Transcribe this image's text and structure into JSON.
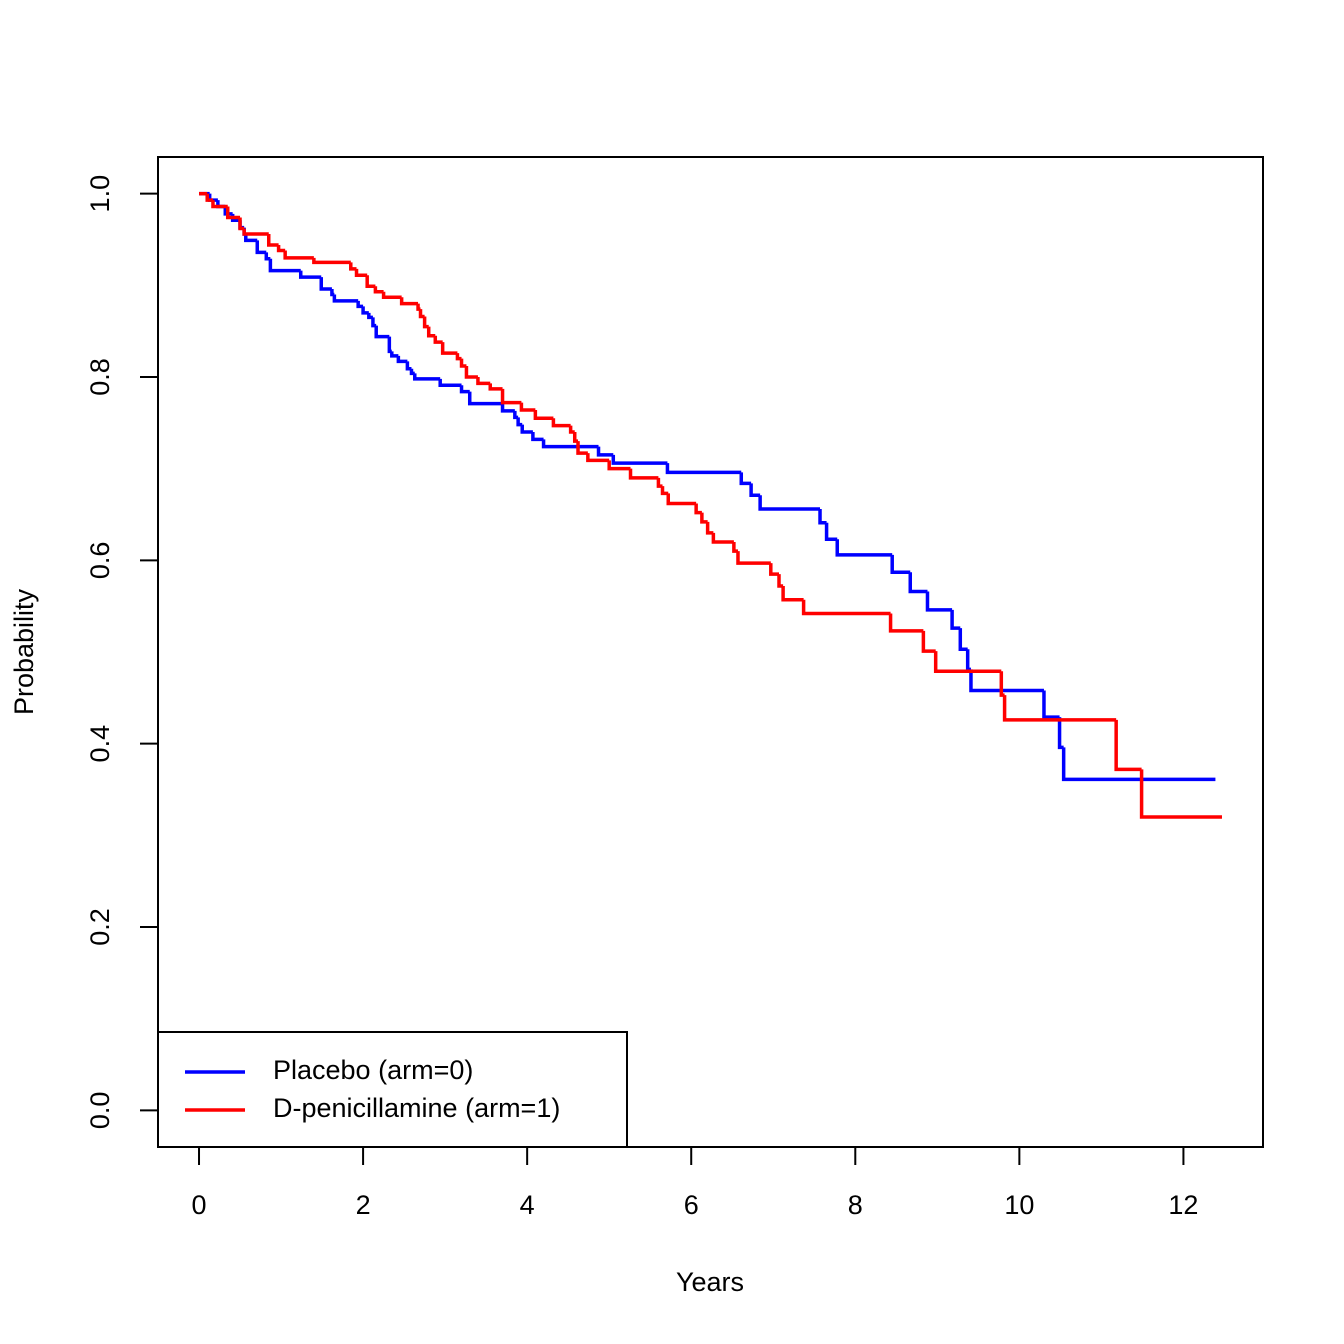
{
  "chart_data": {
    "type": "step",
    "xlabel": "Years",
    "ylabel": "Probability",
    "xlim": [
      -0.5,
      12.97
    ],
    "ylim": [
      -0.04,
      1.04
    ],
    "xticks": [
      0,
      2,
      4,
      6,
      8,
      10,
      12
    ],
    "yticks": [
      {
        "value": 0,
        "label": "0.0"
      },
      0.2,
      0.4,
      0.6,
      0.8,
      {
        "value": 1,
        "label": "1.0"
      }
    ],
    "legend": "bottomleft",
    "series": [
      {
        "name": "Placebo (arm=0)",
        "color": "#0000ff",
        "x": [
          0,
          0.13,
          0.23,
          0.32,
          0.41,
          0.5,
          0.55,
          0.57,
          0.71,
          0.82,
          0.87,
          1.24,
          1.49,
          1.62,
          1.65,
          1.94,
          2.0,
          2.07,
          2.12,
          2.16,
          2.32,
          2.35,
          2.43,
          2.54,
          2.59,
          2.63,
          2.94,
          3.2,
          3.3,
          3.7,
          3.85,
          3.89,
          3.94,
          4.07,
          4.2,
          4.87,
          5.05,
          5.71,
          6.61,
          6.73,
          6.84,
          7.57,
          7.65,
          7.78,
          8.45,
          8.67,
          8.88,
          9.18,
          9.28,
          9.37,
          9.41,
          10.3,
          10.49,
          10.54,
          12.39
        ],
        "values": [
          1,
          0.993,
          0.986,
          0.978,
          0.971,
          0.963,
          0.956,
          0.949,
          0.936,
          0.929,
          0.916,
          0.909,
          0.896,
          0.89,
          0.883,
          0.877,
          0.87,
          0.865,
          0.856,
          0.844,
          0.828,
          0.823,
          0.817,
          0.809,
          0.804,
          0.798,
          0.791,
          0.784,
          0.771,
          0.763,
          0.756,
          0.748,
          0.74,
          0.732,
          0.724,
          0.715,
          0.706,
          0.696,
          0.684,
          0.671,
          0.656,
          0.641,
          0.623,
          0.606,
          0.587,
          0.566,
          0.546,
          0.526,
          0.503,
          0.481,
          0.458,
          0.429,
          0.396,
          0.361,
          0.361
        ]
      },
      {
        "name": "D-penicillamine (arm=1)",
        "color": "#ff0000",
        "x": [
          0,
          0.1,
          0.17,
          0.35,
          0.5,
          0.55,
          0.85,
          0.97,
          1.05,
          1.4,
          1.85,
          1.92,
          2.05,
          2.15,
          2.25,
          2.47,
          2.67,
          2.7,
          2.75,
          2.8,
          2.88,
          2.97,
          3.15,
          3.2,
          3.26,
          3.4,
          3.55,
          3.7,
          3.93,
          4.1,
          4.32,
          4.53,
          4.58,
          4.62,
          4.74,
          5.0,
          5.26,
          5.6,
          5.65,
          5.72,
          6.06,
          6.13,
          6.2,
          6.27,
          6.52,
          6.57,
          6.97,
          7.07,
          7.12,
          7.37,
          8.43,
          8.83,
          8.98,
          9.78,
          9.82,
          11.18,
          11.49,
          12.47
        ],
        "values": [
          1,
          0.993,
          0.986,
          0.974,
          0.962,
          0.956,
          0.944,
          0.938,
          0.93,
          0.925,
          0.918,
          0.911,
          0.899,
          0.893,
          0.887,
          0.88,
          0.874,
          0.866,
          0.855,
          0.845,
          0.838,
          0.826,
          0.82,
          0.812,
          0.8,
          0.793,
          0.787,
          0.772,
          0.764,
          0.755,
          0.747,
          0.74,
          0.73,
          0.717,
          0.709,
          0.7,
          0.69,
          0.681,
          0.673,
          0.662,
          0.652,
          0.642,
          0.63,
          0.62,
          0.61,
          0.597,
          0.585,
          0.572,
          0.557,
          0.542,
          0.523,
          0.501,
          0.479,
          0.453,
          0.426,
          0.372,
          0.32,
          0.32
        ]
      }
    ]
  }
}
